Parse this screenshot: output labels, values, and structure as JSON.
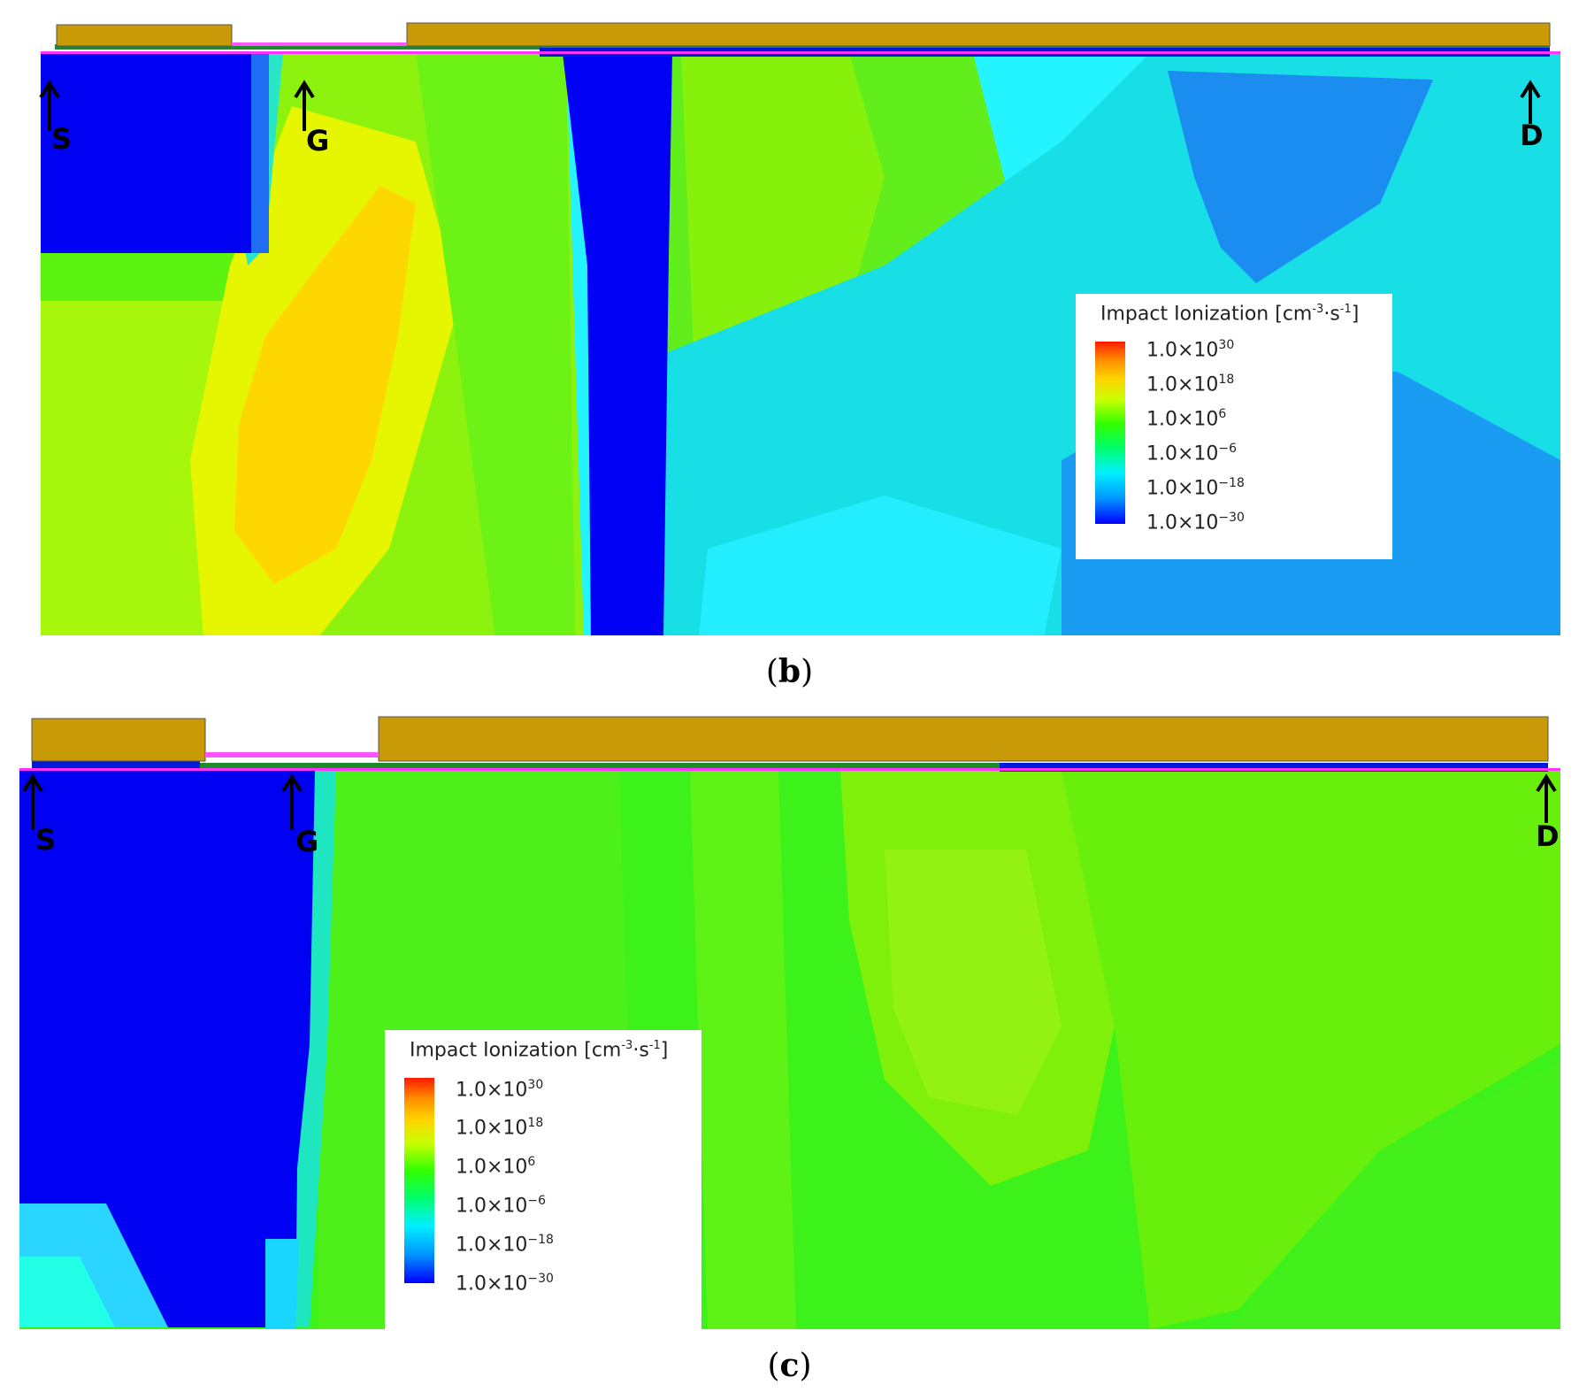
{
  "panels": [
    {
      "id": "b",
      "caption_prefix": "(",
      "caption_letter": "b",
      "caption_suffix": ")",
      "markers": [
        "S",
        "G",
        "D"
      ],
      "legend": {
        "title": "Impact Ionization [cm",
        "title_sup1": "-3",
        "title_mid": "·s",
        "title_sup2": "-1",
        "title_end": "]",
        "ticks": [
          {
            "base": "1.0×10",
            "exp": "30"
          },
          {
            "base": "1.0×10",
            "exp": "18"
          },
          {
            "base": "1.0×10",
            "exp": "6"
          },
          {
            "base": "1.0×10",
            "exp": "−6"
          },
          {
            "base": "1.0×10",
            "exp": "−18"
          },
          {
            "base": "1.0×10",
            "exp": "−30"
          }
        ]
      }
    },
    {
      "id": "c",
      "caption_prefix": "(",
      "caption_letter": "c",
      "caption_suffix": ")",
      "markers": [
        "S",
        "G",
        "D"
      ],
      "legend": {
        "title": "Impact Ionization [cm",
        "title_sup1": "-3",
        "title_mid": "·s",
        "title_sup2": "-1",
        "title_end": "]",
        "ticks": [
          {
            "base": "1.0×10",
            "exp": "30"
          },
          {
            "base": "1.0×10",
            "exp": "18"
          },
          {
            "base": "1.0×10",
            "exp": "6"
          },
          {
            "base": "1.0×10",
            "exp": "−6"
          },
          {
            "base": "1.0×10",
            "exp": "−18"
          },
          {
            "base": "1.0×10",
            "exp": "−30"
          }
        ]
      }
    }
  ],
  "colors": {
    "electrode": "#c89a08",
    "scale_max": "#ff1a00",
    "scale_min": "#0000ff"
  }
}
